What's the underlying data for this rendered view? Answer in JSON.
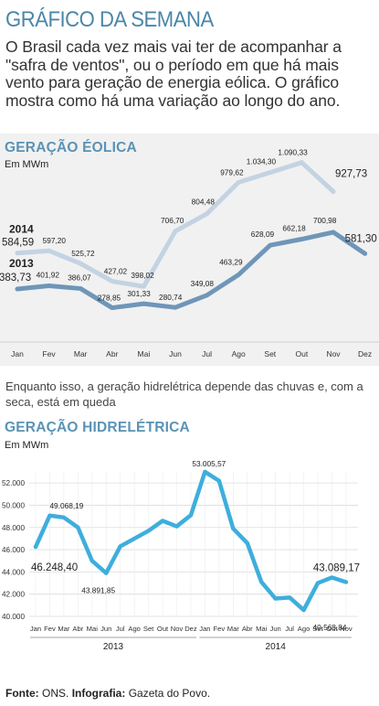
{
  "header": {
    "title": "GRÁFICO DA SEMANA",
    "lead": "O Brasil cada vez mais vai ter de acompanhar a \"safra de ventos\", ou o período em que há mais vento para geração de energia eólica. O gráfico mostra como há uma variação ao longo do ano."
  },
  "connector_text": "Enquanto isso, a geração hidrelétrica depende das chuvas e, com a seca, está em queda",
  "footer": {
    "source_label": "Fonte:",
    "source": "ONS.",
    "infographic_label": "Infografia:",
    "infographic": "Gazeta do Povo."
  },
  "colors": {
    "title_blue": "#4a86a8",
    "wind_2014": "#c3d3e2",
    "wind_2013": "#6f96b8",
    "hydro_line": "#3eaedc",
    "panel_bg": "#f1f1f1"
  },
  "chart_data": [
    {
      "type": "line",
      "title": "GERAÇÃO ÉOLICA",
      "ylabel": "Em MWm",
      "categories": [
        "Jan",
        "Fev",
        "Mar",
        "Abr",
        "Mai",
        "Jun",
        "Jul",
        "Ago",
        "Set",
        "Out",
        "Nov",
        "Dez"
      ],
      "ylim": [
        200,
        1150
      ],
      "grid": false,
      "legend": "series labels at left of lines",
      "series": [
        {
          "name": "2014",
          "values": [
            584.59,
            597.2,
            525.72,
            427.02,
            398.02,
            706.7,
            804.48,
            979.62,
            1034.3,
            1090.33,
            927.73,
            null
          ],
          "labels": [
            "584,59",
            "597,20",
            "525,72",
            "427,02",
            "398,02",
            "706,70",
            "804,48",
            "979,62",
            "1.034,30",
            "1.090,33",
            "927,73",
            ""
          ]
        },
        {
          "name": "2013",
          "values": [
            383.73,
            401.92,
            386.07,
            278.85,
            301.33,
            280.74,
            349.08,
            463.29,
            628.09,
            662.18,
            700.98,
            581.3
          ],
          "labels": [
            "383,73",
            "401,92",
            "386,07",
            "278,85",
            "301,33",
            "280,74",
            "349,08",
            "463,29",
            "628,09",
            "662,18",
            "700,98",
            "581,30"
          ]
        }
      ]
    },
    {
      "type": "line",
      "title": "GERAÇÃO HIDRELÉTRICA",
      "ylabel": "Em MWm",
      "ylim": [
        40000,
        53000
      ],
      "yticks": [
        40000,
        42000,
        44000,
        46000,
        48000,
        50000,
        52000
      ],
      "ytick_labels": [
        "40.000",
        "42.000",
        "44.000",
        "46.000",
        "48.000",
        "50.000",
        "52.000"
      ],
      "grid": true,
      "months": [
        "Jan",
        "Fev",
        "Mar",
        "Abr",
        "Mai",
        "Jun",
        "Jul",
        "Ago",
        "Set",
        "Out",
        "Nov",
        "Dez",
        "Jan",
        "Fev",
        "Mar",
        "Abr",
        "Mai",
        "Jun",
        "Jul",
        "Ago",
        "Set",
        "Out",
        "Nov"
      ],
      "year_groups": [
        {
          "label": "2013",
          "count": 12
        },
        {
          "label": "2014",
          "count": 11
        }
      ],
      "series": [
        {
          "name": "",
          "values": [
            46248.4,
            49068.19,
            48900,
            48000,
            45000,
            43891.85,
            46300,
            47000,
            47700,
            48600,
            48100,
            49100,
            53005.57,
            52200,
            47900,
            46600,
            43100,
            41600,
            41700,
            40568.84,
            43000,
            43500,
            43089.17
          ]
        }
      ],
      "annotations": [
        {
          "label": "46.248,40",
          "month_index": 0
        },
        {
          "label": "49.068,19",
          "month_index": 1
        },
        {
          "label": "43.891,85",
          "month_index": 5
        },
        {
          "label": "53.005,57",
          "month_index": 12
        },
        {
          "label": "40.568,84",
          "month_index": 19
        },
        {
          "label": "43.089,17",
          "month_index": 22
        }
      ]
    }
  ]
}
